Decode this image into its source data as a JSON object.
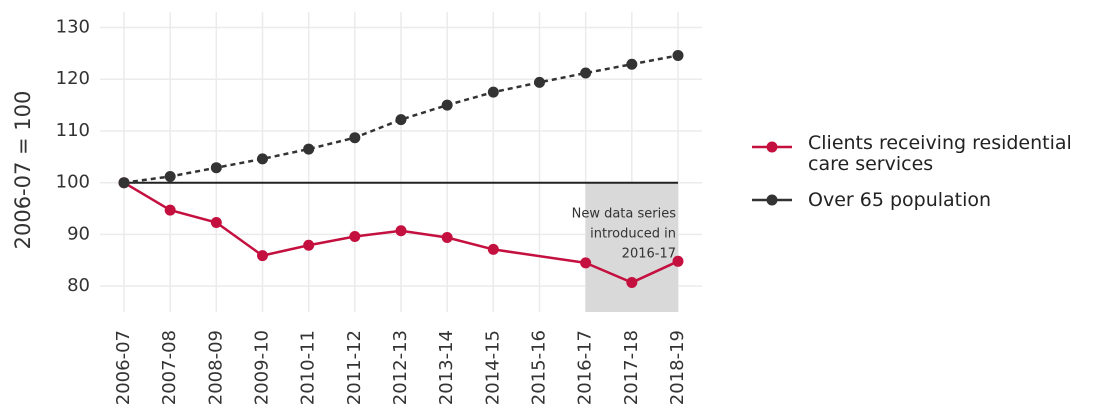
{
  "chart_data": {
    "type": "line",
    "y_label": "2006-07 = 100",
    "categories": [
      "2006-07",
      "2007-08",
      "2008-09",
      "2009-10",
      "2010-11",
      "2011-12",
      "2012-13",
      "2013-14",
      "2014-15",
      "2015-16",
      "2016-17",
      "2017-18",
      "2018-19"
    ],
    "series": [
      {
        "name": "Clients receiving residential care services",
        "color": "#c4103f",
        "dash": false,
        "values": [
          100,
          94.7,
          92.3,
          85.9,
          87.9,
          89.6,
          90.7,
          89.4,
          87.1,
          null,
          84.5,
          80.7,
          84.8
        ]
      },
      {
        "name": "Over 65 population",
        "color": "#333333",
        "dash": true,
        "values": [
          100,
          101.2,
          102.9,
          104.6,
          106.5,
          108.7,
          112.2,
          115.0,
          117.5,
          119.4,
          121.2,
          122.9,
          124.6
        ]
      }
    ],
    "reference_line": 100,
    "shaded_region": {
      "x": [
        "2016-17",
        "2018-19"
      ],
      "y": [
        75,
        100
      ]
    },
    "annotation": [
      "New data series",
      "introduced in",
      "2016-17"
    ],
    "ylim": [
      75,
      133
    ],
    "yticks": [
      80,
      90,
      100,
      110,
      120,
      130
    ],
    "grid": true,
    "legend": "right"
  }
}
